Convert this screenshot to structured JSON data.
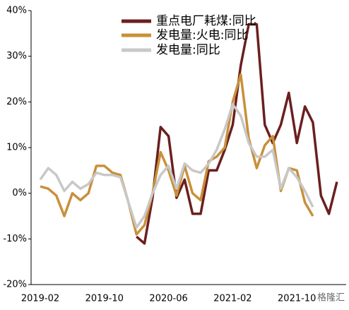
{
  "chart_data": {
    "type": "line",
    "categories": [
      "2019-02",
      null,
      null,
      null,
      null,
      null,
      null,
      null,
      "2019-10",
      null,
      null,
      null,
      null,
      null,
      null,
      null,
      "2020-06",
      null,
      null,
      null,
      null,
      null,
      null,
      null,
      "2021-02",
      null,
      null,
      null,
      null,
      null,
      null,
      null,
      "2021-10",
      null,
      null,
      null,
      null,
      null
    ],
    "series": [
      {
        "name": "重点电厂耗煤:同比",
        "color": "#6b1f1f",
        "values": [
          null,
          null,
          null,
          null,
          null,
          null,
          null,
          null,
          null,
          null,
          null,
          null,
          -9.5,
          -11,
          -1,
          14.5,
          12.5,
          -1,
          3,
          -4.5,
          -4.5,
          5,
          5,
          9.5,
          15,
          28,
          37,
          37,
          15,
          11,
          15,
          22,
          11,
          19,
          15.5,
          -0.5,
          -4.5,
          2.5
        ]
      },
      {
        "name": "发电量:火电:同比",
        "color": "#c8903a",
        "values": [
          1.5,
          1,
          -0.5,
          -5,
          0,
          -1.5,
          0,
          6,
          6,
          4.5,
          4,
          -2,
          -9,
          -7,
          0,
          9,
          5,
          -0.5,
          6,
          0,
          -1.5,
          7,
          8,
          10,
          20,
          26,
          12,
          5.5,
          10.5,
          12.5,
          0.5,
          5.5,
          5,
          -2,
          -5,
          null,
          null,
          null
        ]
      },
      {
        "name": "发电量:同比",
        "color": "#c8c8c8",
        "values": [
          3,
          5.5,
          4,
          0.5,
          2.5,
          1,
          2,
          4.5,
          4,
          4,
          3.5,
          -2,
          -7.5,
          -5,
          0,
          4,
          6,
          1,
          6.5,
          5,
          4.5,
          6.5,
          9.5,
          14,
          19.5,
          17,
          11,
          8,
          8,
          9.5,
          1,
          5.5,
          3.5,
          0.5,
          -3,
          null,
          null,
          null
        ]
      }
    ],
    "ylim": [
      -20,
      40
    ],
    "yticks": [
      {
        "value": -20,
        "label": "-20%"
      },
      {
        "value": -10,
        "label": "-10%"
      },
      {
        "value": 0,
        "label": "0%"
      },
      {
        "value": 10,
        "label": "10%"
      },
      {
        "value": 20,
        "label": "20%"
      },
      {
        "value": 30,
        "label": "30%"
      },
      {
        "value": 40,
        "label": "40%"
      }
    ],
    "legend": "top",
    "watermark": "格隆汇"
  }
}
